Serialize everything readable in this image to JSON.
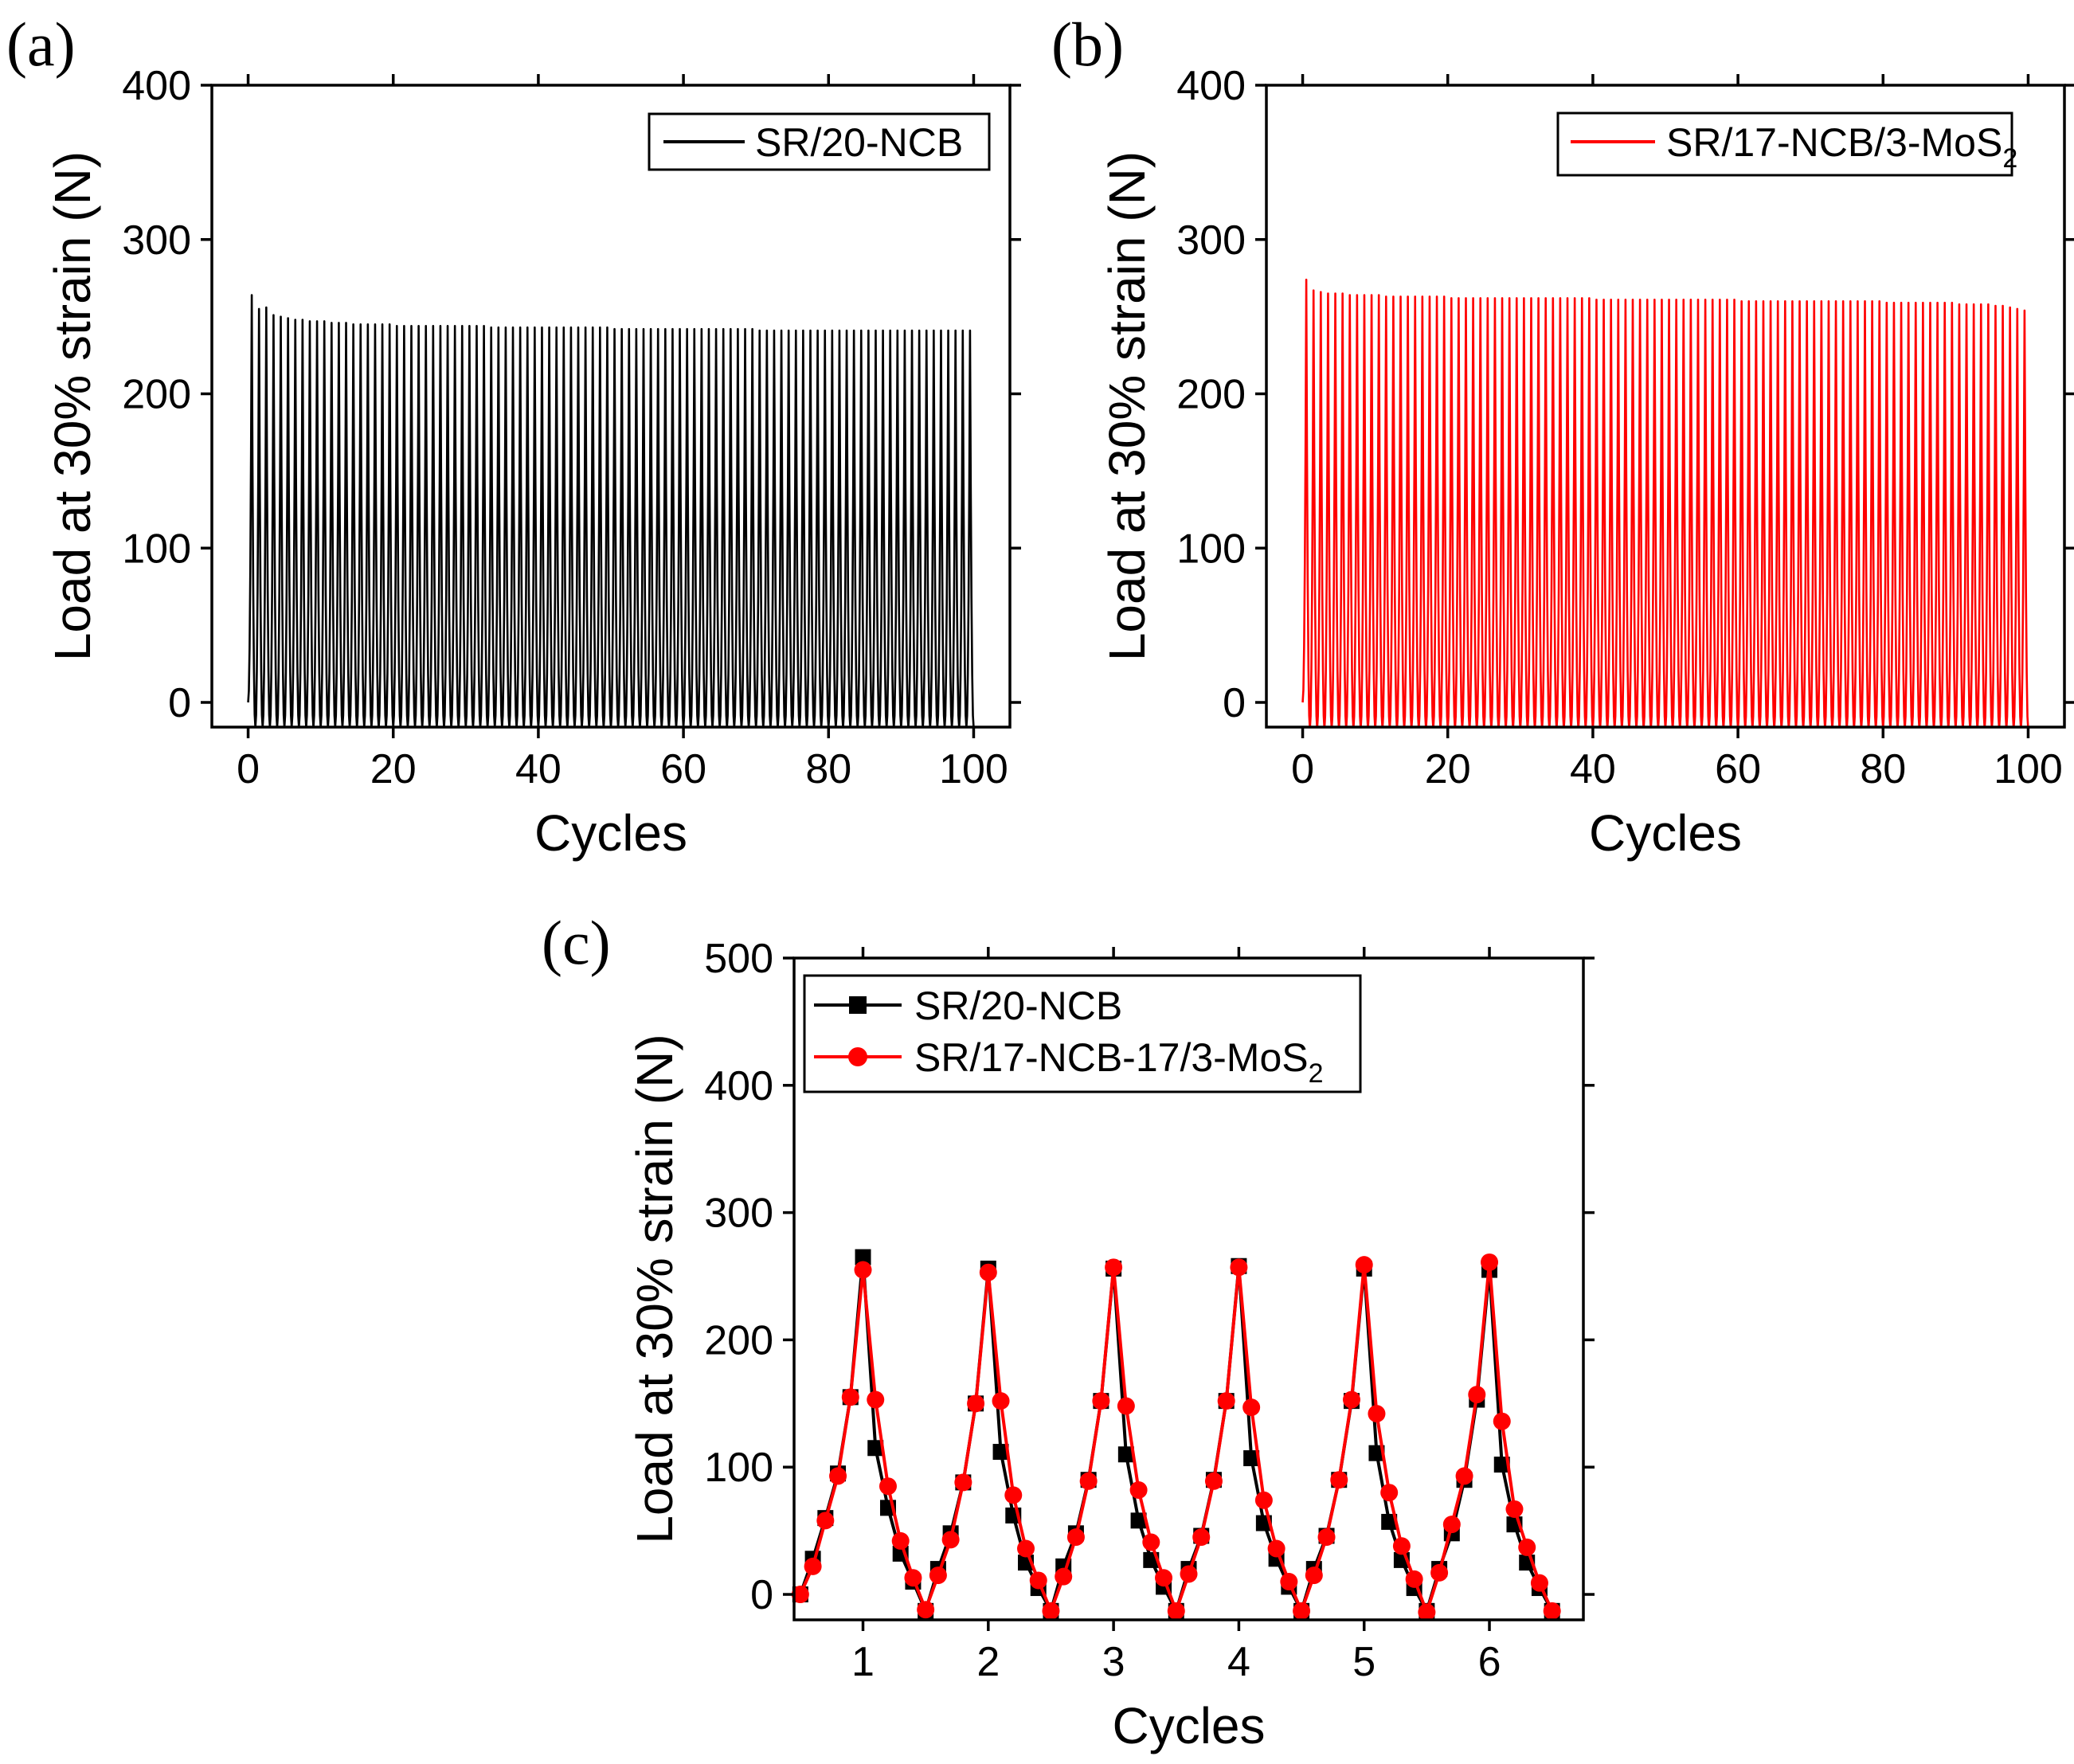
{
  "chart_data": [
    {
      "id": "a",
      "panel_label": "(a)",
      "type": "line",
      "title": "",
      "xlabel": "Cycles",
      "ylabel": "Load at 30% strain (N)",
      "xlim": [
        -5,
        105
      ],
      "ylim": [
        -16,
        400
      ],
      "xticks": [
        0,
        20,
        40,
        60,
        80,
        100
      ],
      "yticks": [
        0,
        100,
        200,
        300,
        400
      ],
      "xtick_labels": [
        "0",
        "20",
        "40",
        "60",
        "80",
        "100"
      ],
      "ytick_labels": [
        "0",
        "100",
        "200",
        "300",
        "400"
      ],
      "grid": false,
      "legend": {
        "position": "top-right",
        "entries": [
          {
            "label": "SR/20-NCB",
            "color": "#000000",
            "marker": "none"
          }
        ]
      },
      "series": [
        {
          "name": "SR/20-NCB",
          "color": "#000000",
          "cycles": 100,
          "peak_loads": [
            264,
            255,
            256,
            251,
            250,
            249,
            248,
            248,
            247,
            247,
            247,
            246,
            246,
            246,
            245,
            245,
            245,
            245,
            245,
            245,
            244,
            244,
            244,
            244,
            244,
            244,
            244,
            244,
            244,
            244,
            244,
            244,
            244,
            243,
            243,
            243,
            243,
            243,
            243,
            243,
            243,
            243,
            243,
            243,
            243,
            243,
            243,
            243,
            243,
            243,
            242,
            242,
            242,
            242,
            242,
            242,
            242,
            242,
            242,
            242,
            242,
            242,
            242,
            242,
            242,
            242,
            242,
            242,
            242,
            242,
            241,
            241,
            241,
            241,
            241,
            241,
            241,
            241,
            241,
            241,
            241,
            241,
            241,
            241,
            241,
            241,
            241,
            241,
            241,
            241,
            241,
            241,
            241,
            241,
            241,
            241,
            241,
            241,
            241,
            241
          ],
          "valley_load": -16,
          "start_load": 0
        }
      ]
    },
    {
      "id": "b",
      "panel_label": "(b)",
      "type": "line",
      "title": "",
      "xlabel": "Cycles",
      "ylabel": "Load at 30% strain (N)",
      "xlim": [
        -5,
        105
      ],
      "ylim": [
        -16,
        400
      ],
      "xticks": [
        0,
        20,
        40,
        60,
        80,
        100
      ],
      "yticks": [
        0,
        100,
        200,
        300,
        400
      ],
      "xtick_labels": [
        "0",
        "20",
        "40",
        "60",
        "80",
        "100"
      ],
      "ytick_labels": [
        "0",
        "100",
        "200",
        "300",
        "400"
      ],
      "grid": false,
      "legend": {
        "position": "top-right",
        "entries": [
          {
            "label": "SR/17-NCB/3-MoS",
            "subscript": "2",
            "color": "#ff0000",
            "marker": "none"
          }
        ]
      },
      "series": [
        {
          "name": "SR/17-NCB/3-MoS2",
          "color": "#ff0000",
          "cycles": 100,
          "peak_loads": [
            274,
            267,
            266,
            265,
            265,
            265,
            264,
            264,
            264,
            264,
            264,
            263,
            263,
            263,
            263,
            263,
            263,
            263,
            263,
            263,
            262,
            262,
            262,
            262,
            262,
            262,
            262,
            262,
            262,
            262,
            262,
            262,
            262,
            262,
            262,
            262,
            262,
            262,
            262,
            262,
            261,
            261,
            261,
            261,
            261,
            261,
            261,
            261,
            261,
            261,
            261,
            261,
            261,
            261,
            261,
            261,
            261,
            261,
            261,
            261,
            260,
            260,
            260,
            260,
            260,
            260,
            260,
            260,
            260,
            260,
            260,
            260,
            260,
            260,
            260,
            260,
            260,
            260,
            260,
            260,
            259,
            259,
            259,
            259,
            259,
            259,
            259,
            259,
            259,
            259,
            258,
            258,
            258,
            258,
            258,
            257,
            257,
            256,
            255,
            254
          ],
          "valley_load": -17,
          "start_load": 0
        }
      ]
    },
    {
      "id": "c",
      "panel_label": "(c)",
      "type": "line",
      "title": "",
      "xlabel": "Cycles",
      "ylabel": "Load at 30% strain (N)",
      "xlim": [
        0.45,
        6.75
      ],
      "ylim": [
        -20,
        500
      ],
      "xticks": [
        1,
        2,
        3,
        4,
        5,
        6
      ],
      "yticks": [
        0,
        100,
        200,
        300,
        400,
        500
      ],
      "xtick_labels": [
        "1",
        "2",
        "3",
        "4",
        "5",
        "6"
      ],
      "ytick_labels": [
        "0",
        "100",
        "200",
        "300",
        "400",
        "500"
      ],
      "grid": false,
      "legend": {
        "position": "top-left",
        "entries": [
          {
            "label": "SR/20-NCB",
            "color": "#000000",
            "marker": "square"
          },
          {
            "label": "SR/17-NCB-17/3-MoS",
            "subscript": "2",
            "color": "#ff0000",
            "marker": "circle"
          }
        ]
      },
      "series": [
        {
          "name": "SR/20-NCB",
          "color": "#000000",
          "marker": "square",
          "x": [
            0.5,
            0.6,
            0.7,
            0.8,
            0.9,
            1.0,
            1.1,
            1.2,
            1.3,
            1.4,
            1.5,
            1.6,
            1.7,
            1.8,
            1.9,
            2.0,
            2.1,
            2.2,
            2.3,
            2.4,
            2.5,
            2.6,
            2.7,
            2.8,
            2.9,
            3.0,
            3.1,
            3.2,
            3.3,
            3.4,
            3.5,
            3.6,
            3.7,
            3.8,
            3.9,
            4.0,
            4.1,
            4.2,
            4.3,
            4.4,
            4.5,
            4.6,
            4.7,
            4.8,
            4.9,
            5.0,
            5.1,
            5.2,
            5.3,
            5.4,
            5.5,
            5.6,
            5.7,
            5.8,
            5.9,
            6.0,
            6.1,
            6.2,
            6.3,
            6.4,
            6.5
          ],
          "y": [
            0,
            28,
            60,
            95,
            155,
            265,
            115,
            68,
            32,
            10,
            -13,
            20,
            48,
            88,
            150,
            256,
            112,
            62,
            25,
            5,
            -13,
            22,
            48,
            90,
            152,
            256,
            110,
            58,
            27,
            6,
            -13,
            20,
            46,
            90,
            152,
            258,
            107,
            56,
            28,
            6,
            -13,
            20,
            46,
            90,
            152,
            256,
            111,
            57,
            27,
            5,
            -13,
            20,
            48,
            90,
            153,
            255,
            102,
            55,
            25,
            5,
            -13
          ]
        },
        {
          "name": "SR/17-NCB-17/3-MoS2",
          "color": "#ff0000",
          "marker": "circle",
          "x": [
            0.5,
            0.6,
            0.7,
            0.8,
            0.9,
            1.0,
            1.1,
            1.2,
            1.3,
            1.4,
            1.5,
            1.6,
            1.7,
            1.8,
            1.9,
            2.0,
            2.1,
            2.2,
            2.3,
            2.4,
            2.5,
            2.6,
            2.7,
            2.8,
            2.9,
            3.0,
            3.1,
            3.2,
            3.3,
            3.4,
            3.5,
            3.6,
            3.7,
            3.8,
            3.9,
            4.0,
            4.1,
            4.2,
            4.3,
            4.4,
            4.5,
            4.6,
            4.7,
            4.8,
            4.9,
            5.0,
            5.1,
            5.2,
            5.3,
            5.4,
            5.5,
            5.6,
            5.7,
            5.8,
            5.9,
            6.0,
            6.1,
            6.2,
            6.3,
            6.4,
            6.5
          ],
          "y": [
            0,
            22,
            58,
            93,
            155,
            255,
            153,
            85,
            42,
            13,
            -12,
            15,
            43,
            88,
            150,
            253,
            152,
            78,
            36,
            11,
            -13,
            14,
            45,
            89,
            152,
            257,
            148,
            82,
            41,
            13,
            -13,
            16,
            45,
            89,
            152,
            257,
            147,
            74,
            36,
            10,
            -13,
            15,
            45,
            90,
            153,
            259,
            142,
            80,
            38,
            12,
            -14,
            17,
            55,
            93,
            157,
            261,
            136,
            67,
            37,
            9,
            -13
          ]
        }
      ]
    }
  ]
}
